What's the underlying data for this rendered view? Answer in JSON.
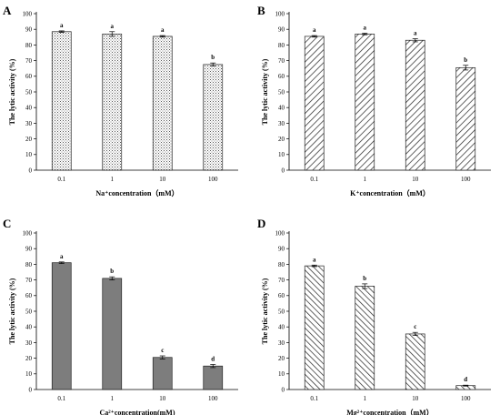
{
  "chart_data": [
    {
      "type": "bar",
      "panel": "A",
      "ylabel": "The lytic activity (%)",
      "xlabel": "Na⁺concentration（mM）",
      "categories": [
        "0.1",
        "1",
        "10",
        "100"
      ],
      "values": [
        88.5,
        87.0,
        85.5,
        67.5
      ],
      "errors": [
        0.5,
        1.5,
        0.5,
        1.0
      ],
      "significance": [
        "a",
        "a",
        "a",
        "b"
      ],
      "ylim": [
        0,
        100
      ],
      "yticks": [
        0,
        10,
        20,
        30,
        40,
        50,
        60,
        70,
        80,
        90,
        100
      ],
      "fill": "dots"
    },
    {
      "type": "bar",
      "panel": "B",
      "ylabel": "The lytic activity (%)",
      "xlabel": "K⁺concentration（mM）",
      "categories": [
        "0.1",
        "1",
        "10",
        "100"
      ],
      "values": [
        85.5,
        87.0,
        83.0,
        65.5
      ],
      "errors": [
        0.5,
        0.5,
        1.0,
        1.5
      ],
      "significance": [
        "a",
        "a",
        "a",
        "b"
      ],
      "ylim": [
        0,
        100
      ],
      "yticks": [
        0,
        10,
        20,
        30,
        40,
        50,
        60,
        70,
        80,
        90,
        100
      ],
      "fill": "hatch-forward"
    },
    {
      "type": "bar",
      "panel": "C",
      "ylabel": "The lytic activity (%)",
      "xlabel": "Ca²⁺concentration(mM)",
      "categories": [
        "0.1",
        "1",
        "10",
        "100"
      ],
      "values": [
        81.0,
        71.0,
        20.5,
        15.0
      ],
      "errors": [
        0.5,
        1.0,
        1.0,
        1.0
      ],
      "significance": [
        "a",
        "b",
        "c",
        "d"
      ],
      "ylim": [
        0,
        100
      ],
      "yticks": [
        0,
        10,
        20,
        30,
        40,
        50,
        60,
        70,
        80,
        90,
        100
      ],
      "fill": "gray"
    },
    {
      "type": "bar",
      "panel": "D",
      "ylabel": "The lytic activity (%)",
      "xlabel": "Mg²⁺concentration（mM）",
      "categories": [
        "0.1",
        "1",
        "10",
        "100"
      ],
      "values": [
        79.0,
        66.0,
        35.5,
        2.5
      ],
      "errors": [
        0.5,
        1.5,
        1.0,
        0.3
      ],
      "significance": [
        "a",
        "b",
        "c",
        "d"
      ],
      "ylim": [
        0,
        100
      ],
      "yticks": [
        0,
        10,
        20,
        30,
        40,
        50,
        60,
        70,
        80,
        90,
        100
      ],
      "fill": "hatch-back"
    }
  ]
}
